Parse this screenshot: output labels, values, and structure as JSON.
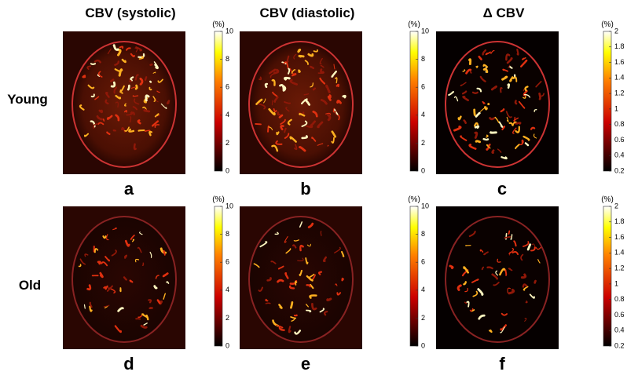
{
  "columns": [
    {
      "title": "CBV (systolic)",
      "colorbar": {
        "unit": "(%)",
        "lim": [
          0,
          10
        ],
        "ticks": [
          0,
          2,
          4,
          6,
          8,
          10
        ]
      }
    },
    {
      "title": "CBV (diastolic)",
      "colorbar": {
        "unit": "(%)",
        "lim": [
          0,
          10
        ],
        "ticks": [
          0,
          2,
          4,
          6,
          8,
          10
        ]
      }
    },
    {
      "title": "Δ CBV",
      "colorbar": {
        "unit": "(%)",
        "lim": [
          0.2,
          2
        ],
        "ticks": [
          0.2,
          0.4,
          0.6,
          0.8,
          1,
          1.2,
          1.4,
          1.6,
          1.8,
          2
        ]
      }
    }
  ],
  "rows": [
    {
      "label": "Young",
      "panels": [
        "a",
        "b",
        "c"
      ]
    },
    {
      "label": "Old",
      "panels": [
        "d",
        "e",
        "f"
      ]
    }
  ]
}
